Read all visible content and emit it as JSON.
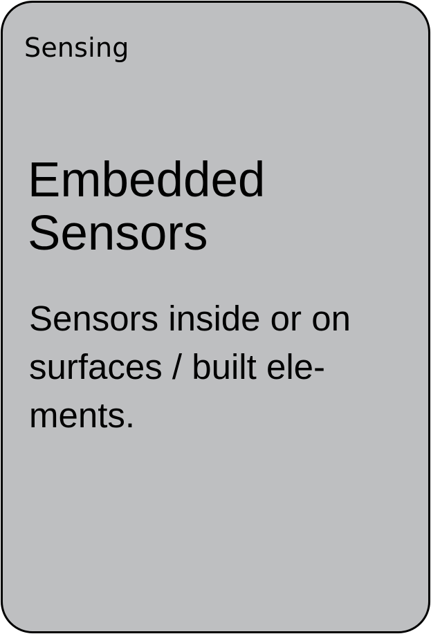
{
  "card": {
    "category": "Sensing",
    "title_line1": "Embedded",
    "title_line2": "Sensors",
    "description_line1": "Sensors inside or on",
    "description_line2": "surfaces / built ele-",
    "description_line3": "ments.",
    "background_color": "#bebfc1",
    "border_color": "#000000"
  }
}
